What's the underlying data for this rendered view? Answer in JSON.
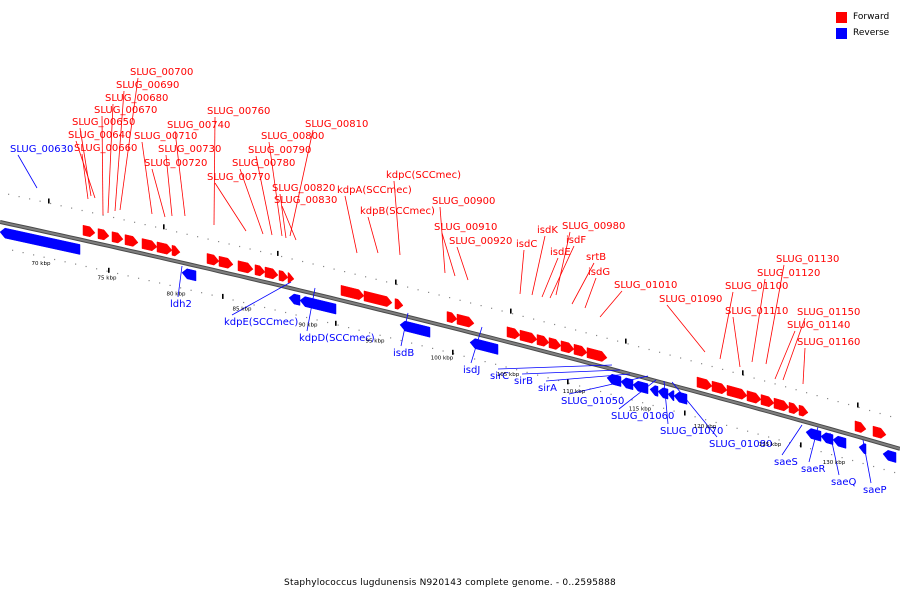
{
  "legend": {
    "items": [
      {
        "label": "Forward",
        "color": "#ff0000"
      },
      {
        "label": "Reverse",
        "color": "#0000ff"
      }
    ]
  },
  "caption": "Staphylococcus lugdunensis N920143 complete genome. - 0..2595888",
  "colors": {
    "forward": "#ff0000",
    "reverse": "#0000ff",
    "backbone": "#7f7f7f",
    "label_forward": "#ff0000",
    "label_reverse": "#0000ff"
  },
  "scale_labels": [
    "70 kbp",
    "75 kbp",
    "80 kbp",
    "85 kbp",
    "90 kbp",
    "95 kbp",
    "100 kbp",
    "105 kbp",
    "110 kbp",
    "115 kbp",
    "120 kbp",
    "125 kbp",
    "130 kbp"
  ],
  "forward_genes": [
    "SLUG_00700",
    "SLUG_00690",
    "SLUG_00680",
    "SLUG_00670",
    "SLUG_00650",
    "SLUG_00640",
    "SLUG_00660",
    "SLUG_00710",
    "SLUG_00730",
    "SLUG_00720",
    "SLUG_00760",
    "SLUG_00740",
    "SLUG_00810",
    "SLUG_00800",
    "SLUG_00790",
    "SLUG_00780",
    "SLUG_00770",
    "SLUG_00820",
    "SLUG_00830",
    "kdpC(SCCmec)",
    "kdpA(SCCmec)",
    "kdpB(SCCmec)",
    "SLUG_00900",
    "SLUG_00910",
    "SLUG_00920",
    "isdK",
    "SLUG_00980",
    "isdC",
    "isdF",
    "isdE",
    "srtB",
    "isdG",
    "SLUG_01010",
    "SLUG_01090",
    "SLUG_01130",
    "SLUG_01120",
    "SLUG_01100",
    "SLUG_01110",
    "SLUG_01150",
    "SLUG_01140",
    "SLUG_01160"
  ],
  "reverse_genes": [
    "SLUG_00630",
    "ldh2",
    "kdpE(SCCmec)",
    "kdpD(SCCmec)",
    "isdB",
    "isdJ",
    "sirC",
    "sirB",
    "sirA",
    "SLUG_01050",
    "SLUG_01060",
    "SLUG_01070",
    "SLUG_01080",
    "saeS",
    "saeR",
    "saeQ",
    "saeP"
  ]
}
